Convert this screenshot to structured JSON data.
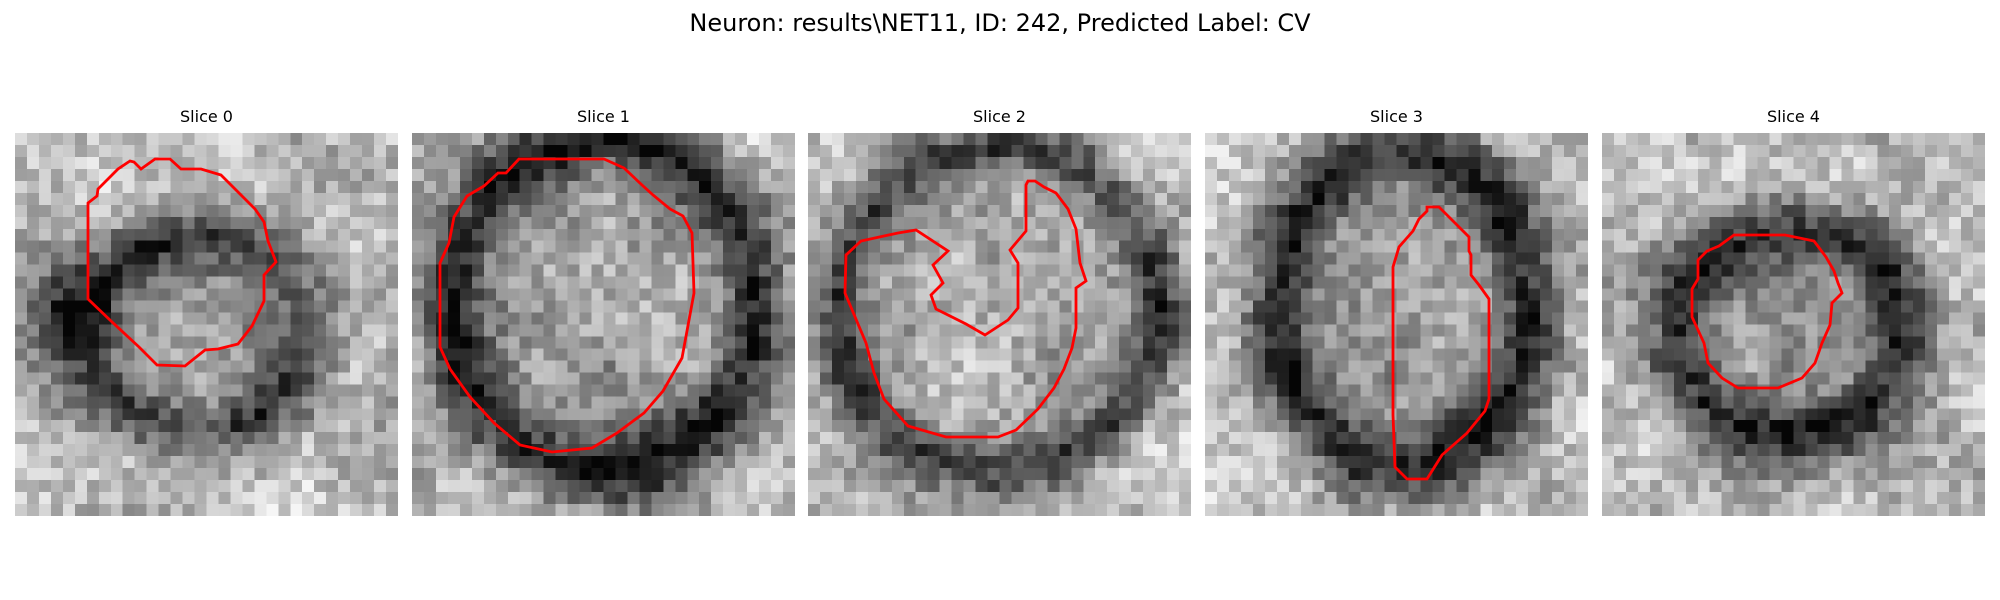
{
  "title": "Neuron: results\\NET11, ID: 242, Predicted Label: CV",
  "outline_color": "#ff0000",
  "colormap": "gray",
  "panels": [
    {
      "title": "Slice 0"
    },
    {
      "title": "Slice 1"
    },
    {
      "title": "Slice 2"
    },
    {
      "title": "Slice 3"
    },
    {
      "title": "Slice 4"
    }
  ]
}
